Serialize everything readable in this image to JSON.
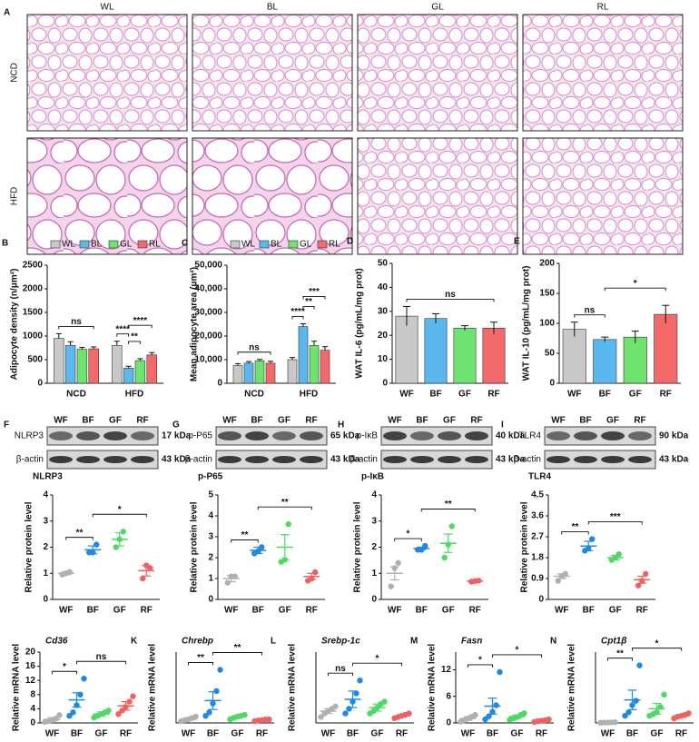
{
  "panel_a": {
    "label": "A",
    "columns": [
      "WL",
      "BL",
      "GL",
      "RL"
    ],
    "rows": [
      "NCD",
      "HFD"
    ]
  },
  "blots": [
    {
      "label": "F",
      "lanes": [
        "WF",
        "BF",
        "GF",
        "RF"
      ],
      "rows": [
        {
          "name": "NLRP3",
          "size": "17 kDa"
        },
        {
          "name": "β-actin",
          "size": "43 kDa"
        }
      ]
    },
    {
      "label": "G",
      "lanes": [
        "WF",
        "BF",
        "GF",
        "RF"
      ],
      "rows": [
        {
          "name": "p-P65",
          "size": "65 kDa"
        },
        {
          "name": "β-actin",
          "size": "43 kDa"
        }
      ]
    },
    {
      "label": "H",
      "lanes": [
        "WF",
        "BF",
        "GF",
        "RF"
      ],
      "rows": [
        {
          "name": "p-IκB",
          "size": "40 kDa"
        },
        {
          "name": "β-actin",
          "size": "43 kDa"
        }
      ]
    },
    {
      "label": "I",
      "lanes": [
        "WF",
        "BF",
        "GF",
        "RF"
      ],
      "rows": [
        {
          "name": "TLR4",
          "size": "90 kDa"
        },
        {
          "name": "β-actin",
          "size": "43 kDa"
        }
      ]
    }
  ],
  "chart_data": [
    {
      "label": "B",
      "type": "bar",
      "y_label": "Adipocyte density (n/μm²)",
      "categories": [
        "NCD",
        "HFD"
      ],
      "series": [
        {
          "name": "WL",
          "color": "#c8c8c8",
          "values": [
            950,
            800
          ],
          "errors": [
            100,
            90
          ]
        },
        {
          "name": "BL",
          "color": "#5bb8ee",
          "values": [
            800,
            320
          ],
          "errors": [
            80,
            40
          ]
        },
        {
          "name": "GL",
          "color": "#6ee46e",
          "values": [
            720,
            480
          ],
          "errors": [
            40,
            40
          ]
        },
        {
          "name": "RL",
          "color": "#f46a6a",
          "values": [
            730,
            600
          ],
          "errors": [
            40,
            50
          ]
        }
      ],
      "ylim": [
        0,
        2500
      ],
      "yticks": [
        0,
        500,
        1000,
        1500,
        2000,
        2500
      ],
      "annotations": [
        {
          "text": "ns",
          "group": "NCD",
          "between": [
            "WL",
            "RL"
          ]
        },
        {
          "text": "****",
          "group": "HFD",
          "between": [
            "WL",
            "BL"
          ]
        },
        {
          "text": "**",
          "group": "HFD",
          "between": [
            "BL",
            "GL"
          ]
        },
        {
          "text": "****",
          "group": "HFD",
          "between": [
            "BL",
            "RL"
          ]
        }
      ]
    },
    {
      "label": "C",
      "type": "bar",
      "y_label": "Mean adipocyte area (μm²)",
      "categories": [
        "NCD",
        "HFD"
      ],
      "series": [
        {
          "name": "WL",
          "color": "#c8c8c8",
          "values": [
            7500,
            10000
          ],
          "errors": [
            800,
            900
          ]
        },
        {
          "name": "BL",
          "color": "#5bb8ee",
          "values": [
            8500,
            24000
          ],
          "errors": [
            700,
            1200
          ]
        },
        {
          "name": "GL",
          "color": "#6ee46e",
          "values": [
            9500,
            16000
          ],
          "errors": [
            600,
            1800
          ]
        },
        {
          "name": "RL",
          "color": "#f46a6a",
          "values": [
            8500,
            14000
          ],
          "errors": [
            800,
            1500
          ]
        }
      ],
      "ylim": [
        0,
        50000
      ],
      "yticks": [
        0,
        {
          "value": 10000,
          "label": "10,000"
        },
        {
          "value": 20000,
          "label": "20,000"
        },
        {
          "value": 30000,
          "label": "30,000"
        },
        {
          "value": 40000,
          "label": "40,000"
        },
        {
          "value": 50000,
          "label": "50,000"
        }
      ],
      "annotations": [
        {
          "text": "ns",
          "group": "NCD",
          "between": [
            "WL",
            "RL"
          ]
        },
        {
          "text": "****",
          "group": "HFD",
          "between": [
            "WL",
            "BL"
          ]
        },
        {
          "text": "**",
          "group": "HFD",
          "between": [
            "BL",
            "GL"
          ]
        },
        {
          "text": "***",
          "group": "HFD",
          "between": [
            "BL",
            "RL"
          ]
        }
      ]
    },
    {
      "label": "D",
      "type": "bar",
      "y_label": "WAT IL-6 (pg/mL/mg prot)",
      "categories": [
        "WF",
        "BF",
        "GF",
        "RF"
      ],
      "values": [
        28,
        27,
        23,
        23
      ],
      "errors": [
        4,
        2,
        1,
        2.5
      ],
      "colors": [
        "#c8c8c8",
        "#5bb8ee",
        "#6ee46e",
        "#f46a6a"
      ],
      "ylim": [
        0,
        50
      ],
      "yticks": [
        0,
        10,
        20,
        30,
        40,
        50
      ],
      "annotations": [
        {
          "text": "ns",
          "between": [
            "WF",
            "RF"
          ]
        }
      ]
    },
    {
      "label": "E",
      "type": "bar",
      "y_label": "WAT IL-10 (pg/mL/mg prot)",
      "categories": [
        "WF",
        "BF",
        "GF",
        "RF"
      ],
      "values": [
        90,
        73,
        77,
        115
      ],
      "errors": [
        12,
        4,
        10,
        15
      ],
      "colors": [
        "#c8c8c8",
        "#5bb8ee",
        "#6ee46e",
        "#f46a6a"
      ],
      "ylim": [
        0,
        200
      ],
      "yticks": [
        0,
        50,
        100,
        150,
        200
      ],
      "annotations": [
        {
          "text": "ns",
          "between": [
            "WF",
            "BF"
          ]
        },
        {
          "text": "*",
          "between": [
            "BF",
            "RF"
          ]
        }
      ]
    },
    {
      "type": "dot",
      "title": "NLRP3",
      "y_label": "Relative protein level",
      "categories": [
        "WF",
        "BF",
        "GF",
        "RF"
      ],
      "colors": [
        "#b0b0b0",
        "#1e88e5",
        "#4cd964",
        "#f06060"
      ],
      "values": [
        1.0,
        1.9,
        2.3,
        1.1
      ],
      "errors": [
        0.05,
        0.15,
        0.25,
        0.2
      ],
      "points": [
        [
          0.95,
          1.0,
          1.05
        ],
        [
          1.8,
          1.8,
          2.1
        ],
        [
          2.0,
          2.3,
          2.6
        ],
        [
          0.8,
          1.3,
          1.2
        ]
      ],
      "ylim": [
        0,
        4
      ],
      "yticks": [
        0,
        1,
        2,
        3,
        4
      ],
      "annotations": [
        {
          "text": "**",
          "between": [
            "WF",
            "BF"
          ]
        },
        {
          "text": "*",
          "between": [
            "BF",
            "RF"
          ]
        }
      ]
    },
    {
      "type": "dot",
      "title": "p-P65",
      "y_label": "Relative protein level",
      "categories": [
        "WF",
        "BF",
        "GF",
        "RF"
      ],
      "colors": [
        "#b0b0b0",
        "#1e88e5",
        "#4cd964",
        "#f06060"
      ],
      "values": [
        1.0,
        2.35,
        2.5,
        1.1
      ],
      "errors": [
        0.15,
        0.15,
        0.6,
        0.15
      ],
      "points": [
        [
          0.8,
          1.1,
          1.1
        ],
        [
          2.2,
          2.3,
          2.5
        ],
        [
          1.8,
          1.9,
          3.6
        ],
        [
          0.9,
          1.0,
          1.3
        ]
      ],
      "ylim": [
        0,
        5
      ],
      "yticks": [
        0,
        1,
        2,
        3,
        4,
        5
      ],
      "annotations": [
        {
          "text": "**",
          "between": [
            "WF",
            "BF"
          ]
        },
        {
          "text": "**",
          "between": [
            "BF",
            "RF"
          ]
        }
      ]
    },
    {
      "type": "dot",
      "title": "p-IκB",
      "y_label": "Relative protein level",
      "categories": [
        "WF",
        "BF",
        "GF",
        "RF"
      ],
      "colors": [
        "#b0b0b0",
        "#1e88e5",
        "#4cd964",
        "#f06060"
      ],
      "values": [
        1.0,
        1.95,
        2.15,
        0.7
      ],
      "errors": [
        0.25,
        0.05,
        0.35,
        0.02
      ],
      "points": [
        [
          0.5,
          1.2,
          1.4
        ],
        [
          1.9,
          1.9,
          2.05
        ],
        [
          1.6,
          2.1,
          2.8
        ],
        [
          0.68,
          0.7,
          0.72
        ]
      ],
      "ylim": [
        0,
        4
      ],
      "yticks": [
        0,
        1,
        2,
        3,
        4
      ],
      "annotations": [
        {
          "text": "*",
          "between": [
            "WF",
            "BF"
          ]
        },
        {
          "text": "**",
          "between": [
            "BF",
            "RF"
          ]
        }
      ]
    },
    {
      "type": "dot",
      "title": "TLR4",
      "y_label": "Relative protein level",
      "categories": [
        "WF",
        "BF",
        "GF",
        "RF"
      ],
      "colors": [
        "#b0b0b0",
        "#1e88e5",
        "#4cd964",
        "#f06060"
      ],
      "values": [
        1.0,
        2.3,
        1.8,
        0.85
      ],
      "errors": [
        0.1,
        0.2,
        0.1,
        0.15
      ],
      "points": [
        [
          0.8,
          1.0,
          1.1
        ],
        [
          2.1,
          2.2,
          2.6
        ],
        [
          1.7,
          1.8,
          1.95
        ],
        [
          0.6,
          0.8,
          1.1
        ]
      ],
      "ylim": [
        0,
        4.5
      ],
      "yticks": [
        0,
        0.9,
        1.8,
        2.7,
        3.6,
        4.5
      ],
      "annotations": [
        {
          "text": "**",
          "between": [
            "WF",
            "BF"
          ]
        },
        {
          "text": "***",
          "between": [
            "BF",
            "RF"
          ]
        }
      ]
    },
    {
      "label": "J",
      "type": "dot",
      "title": "Cd36",
      "italic_title": true,
      "y_label": "Relative mRNA level",
      "categories": [
        "WF",
        "BF",
        "GF",
        "RF"
      ],
      "colors": [
        "#b0b0b0",
        "#1e88e5",
        "#4cd964",
        "#f06060"
      ],
      "values": [
        1.0,
        6.5,
        2.5,
        4.8
      ],
      "errors": [
        0.5,
        2.0,
        0.6,
        1.2
      ],
      "points": [
        [
          0.3,
          0.5,
          0.8,
          1.2,
          2.2
        ],
        [
          2.0,
          3.0,
          5.0,
          8.0,
          12.5
        ],
        [
          1.5,
          2.0,
          2.5,
          3.0,
          3.5
        ],
        [
          2.5,
          3.5,
          4.5,
          6.0,
          7.5
        ]
      ],
      "ylim": [
        0,
        20
      ],
      "yticks": [
        0,
        4,
        8,
        12,
        16,
        20
      ],
      "annotations": [
        {
          "text": "*",
          "between": [
            "WF",
            "BF"
          ]
        },
        {
          "text": "ns",
          "between": [
            "BF",
            "RF"
          ]
        }
      ]
    },
    {
      "label": "K",
      "type": "dot",
      "title": "Chrebp",
      "italic_title": true,
      "y_label": "Relative mRNA level",
      "categories": [
        "WF",
        "BF",
        "GF",
        "RF"
      ],
      "colors": [
        "#b0b0b0",
        "#1e88e5",
        "#4cd964",
        "#f06060"
      ],
      "values": [
        1.0,
        6.3,
        1.7,
        0.8
      ],
      "errors": [
        0.3,
        2.5,
        0.4,
        0.2
      ],
      "points": [
        [
          0.5,
          0.8,
          1.0,
          1.4,
          1.8
        ],
        [
          2.0,
          3.0,
          5.5,
          9.0,
          15.0
        ],
        [
          1.0,
          1.4,
          1.8,
          2.0,
          2.3
        ],
        [
          0.5,
          0.7,
          0.8,
          1.0,
          1.0
        ]
      ],
      "ylim": [
        0,
        20
      ],
      "annotations": [
        {
          "text": "**",
          "between": [
            "WF",
            "BF"
          ]
        },
        {
          "text": "**",
          "between": [
            "BF",
            "RF"
          ]
        }
      ]
    },
    {
      "label": "L",
      "type": "dot",
      "title": "Srebp-1c",
      "italic_title": true,
      "y_label": "Relative mRNA level",
      "categories": [
        "WF",
        "BF",
        "GF",
        "RF"
      ],
      "colors": [
        "#b0b0b0",
        "#1e88e5",
        "#4cd964",
        "#f06060"
      ],
      "values": [
        1.0,
        2.0,
        1.3,
        0.6
      ],
      "errors": [
        0.2,
        0.7,
        0.3,
        0.1
      ],
      "points": [
        [
          0.5,
          0.8,
          1.0,
          1.2,
          1.4
        ],
        [
          0.8,
          1.2,
          1.8,
          2.5,
          3.6
        ],
        [
          0.8,
          1.0,
          1.3,
          1.6,
          1.8
        ],
        [
          0.4,
          0.5,
          0.6,
          0.7,
          0.8
        ]
      ],
      "ylim": [
        0,
        6
      ],
      "annotations": [
        {
          "text": "ns",
          "between": [
            "WF",
            "BF"
          ]
        },
        {
          "text": "*",
          "between": [
            "BF",
            "RF"
          ]
        }
      ]
    },
    {
      "label": "M",
      "type": "dot",
      "title": "Fasn",
      "italic_title": true,
      "y_label": "Relative mRNA level",
      "categories": [
        "WF",
        "BF",
        "GF",
        "RF"
      ],
      "colors": [
        "#b0b0b0",
        "#1e88e5",
        "#4cd964",
        "#f06060"
      ],
      "values": [
        1.0,
        3.8,
        1.4,
        0.5
      ],
      "errors": [
        0.4,
        1.8,
        0.4,
        0.15
      ],
      "points": [
        [
          0.3,
          0.6,
          1.0,
          1.4,
          1.8
        ],
        [
          0.8,
          1.5,
          2.5,
          4.0,
          11.5
        ],
        [
          0.7,
          1.0,
          1.3,
          1.8,
          2.2
        ],
        [
          0.2,
          0.4,
          0.5,
          0.6,
          0.8
        ]
      ],
      "ylim": [
        0,
        16
      ],
      "yticks": [
        0,
        6,
        12
      ],
      "annotations": [
        {
          "text": "*",
          "between": [
            "WF",
            "BF"
          ]
        },
        {
          "text": "*",
          "between": [
            "BF",
            "RF"
          ]
        }
      ]
    },
    {
      "label": "N",
      "type": "dot",
      "title": "Cpt1β",
      "italic_title": true,
      "y_label": "Relative mRNA level",
      "categories": [
        "WF",
        "BF",
        "GF",
        "RF"
      ],
      "colors": [
        "#b0b0b0",
        "#1e88e5",
        "#4cd964",
        "#f06060"
      ],
      "values": [
        0.05,
        2.6,
        1.6,
        0.8
      ],
      "errors": [
        0.02,
        1.1,
        0.6,
        0.15
      ],
      "points": [
        [
          0.02,
          0.04,
          0.05,
          0.06,
          0.08
        ],
        [
          0.8,
          1.2,
          2.0,
          2.5,
          6.5
        ],
        [
          0.8,
          1.0,
          1.2,
          1.8,
          3.2
        ],
        [
          0.5,
          0.7,
          0.8,
          0.9,
          1.1
        ]
      ],
      "ylim": [
        0,
        8
      ],
      "annotations": [
        {
          "text": "**",
          "between": [
            "WF",
            "BF"
          ]
        },
        {
          "text": "*",
          "between": [
            "BF",
            "RF"
          ]
        }
      ]
    }
  ]
}
